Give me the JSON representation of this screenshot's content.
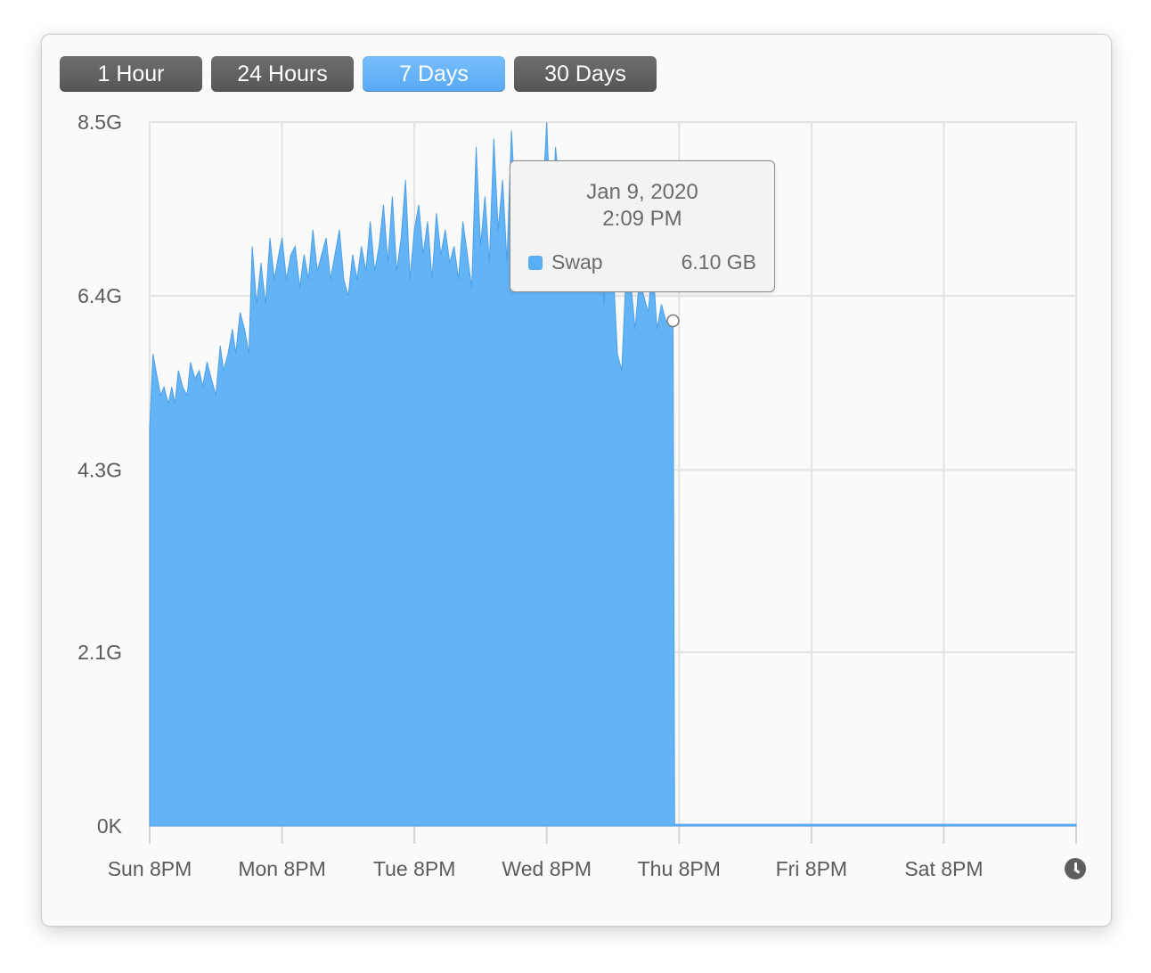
{
  "range_buttons": [
    {
      "label": "1 Hour",
      "selected": false
    },
    {
      "label": "24 Hours",
      "selected": false
    },
    {
      "label": "7 Days",
      "selected": true
    },
    {
      "label": "30 Days",
      "selected": false
    }
  ],
  "colors": {
    "accent": "#5aa9f5",
    "area_fill": "#63b4f7",
    "button_dark": "#616161"
  },
  "tooltip": {
    "date": "Jan 9, 2020",
    "time": "2:09 PM",
    "series": "Swap",
    "value": "6.10 GB"
  },
  "icons": {
    "time_icon": "clock-icon"
  },
  "chart_data": {
    "type": "area",
    "series": [
      {
        "name": "Swap",
        "unit": "GB"
      }
    ],
    "yticks": [
      "8.5G",
      "6.4G",
      "4.3G",
      "2.1G",
      "0K"
    ],
    "ytick_values": [
      8.5,
      6.4,
      4.3,
      2.1,
      0
    ],
    "ylim": [
      0,
      8.5
    ],
    "xticks": [
      "Sun 8PM",
      "Mon 8PM",
      "Tue 8PM",
      "Wed 8PM",
      "Thu 8PM",
      "Fri 8PM",
      "Sat 8PM"
    ],
    "xlim_hours": [
      0,
      168
    ],
    "grid": true,
    "points": [
      [
        0.0,
        4.8
      ],
      [
        0.6,
        5.7
      ],
      [
        1.4,
        5.4
      ],
      [
        2.0,
        5.2
      ],
      [
        2.6,
        5.3
      ],
      [
        3.4,
        5.1
      ],
      [
        4.0,
        5.3
      ],
      [
        4.6,
        5.1
      ],
      [
        5.2,
        5.5
      ],
      [
        6.0,
        5.3
      ],
      [
        6.8,
        5.2
      ],
      [
        7.4,
        5.6
      ],
      [
        8.2,
        5.4
      ],
      [
        9.0,
        5.5
      ],
      [
        9.6,
        5.3
      ],
      [
        10.4,
        5.6
      ],
      [
        11.2,
        5.4
      ],
      [
        12.0,
        5.2
      ],
      [
        12.8,
        5.8
      ],
      [
        13.4,
        5.5
      ],
      [
        14.2,
        5.7
      ],
      [
        15.0,
        6.0
      ],
      [
        15.6,
        5.7
      ],
      [
        16.4,
        6.2
      ],
      [
        17.2,
        6.0
      ],
      [
        18.0,
        5.7
      ],
      [
        18.6,
        7.0
      ],
      [
        19.4,
        6.3
      ],
      [
        20.2,
        6.8
      ],
      [
        21.0,
        6.3
      ],
      [
        21.8,
        7.1
      ],
      [
        22.6,
        6.6
      ],
      [
        23.4,
        6.9
      ],
      [
        24.0,
        7.1
      ],
      [
        24.8,
        6.6
      ],
      [
        25.6,
        6.9
      ],
      [
        26.4,
        7.0
      ],
      [
        27.2,
        6.5
      ],
      [
        28.0,
        6.9
      ],
      [
        28.8,
        6.6
      ],
      [
        29.6,
        7.2
      ],
      [
        30.4,
        6.7
      ],
      [
        31.2,
        6.9
      ],
      [
        32.0,
        7.1
      ],
      [
        32.8,
        6.6
      ],
      [
        33.6,
        6.9
      ],
      [
        34.4,
        7.2
      ],
      [
        35.2,
        6.6
      ],
      [
        36.0,
        6.4
      ],
      [
        36.8,
        6.9
      ],
      [
        37.6,
        6.6
      ],
      [
        38.4,
        7.0
      ],
      [
        39.2,
        6.7
      ],
      [
        40.0,
        7.3
      ],
      [
        40.8,
        6.7
      ],
      [
        41.6,
        7.0
      ],
      [
        42.4,
        7.5
      ],
      [
        43.2,
        6.8
      ],
      [
        44.0,
        7.6
      ],
      [
        44.8,
        6.7
      ],
      [
        45.6,
        7.1
      ],
      [
        46.4,
        7.8
      ],
      [
        47.2,
        6.6
      ],
      [
        48.0,
        7.2
      ],
      [
        48.8,
        7.5
      ],
      [
        49.6,
        6.9
      ],
      [
        50.4,
        7.3
      ],
      [
        51.2,
        6.6
      ],
      [
        52.0,
        7.4
      ],
      [
        52.8,
        6.9
      ],
      [
        53.6,
        7.2
      ],
      [
        54.4,
        6.8
      ],
      [
        55.2,
        7.0
      ],
      [
        56.0,
        6.6
      ],
      [
        56.8,
        7.3
      ],
      [
        57.6,
        6.9
      ],
      [
        58.4,
        6.5
      ],
      [
        59.2,
        8.2
      ],
      [
        60.0,
        7.0
      ],
      [
        60.8,
        7.6
      ],
      [
        61.6,
        6.8
      ],
      [
        62.4,
        8.3
      ],
      [
        63.2,
        7.2
      ],
      [
        64.0,
        7.8
      ],
      [
        64.8,
        6.8
      ],
      [
        65.6,
        8.4
      ],
      [
        66.4,
        7.4
      ],
      [
        67.2,
        7.1
      ],
      [
        68.0,
        7.6
      ],
      [
        68.8,
        6.9
      ],
      [
        69.6,
        6.6
      ],
      [
        70.4,
        6.8
      ],
      [
        71.2,
        7.5
      ],
      [
        72.0,
        8.5
      ],
      [
        72.8,
        7.1
      ],
      [
        73.6,
        8.2
      ],
      [
        74.4,
        7.6
      ],
      [
        75.2,
        8.0
      ],
      [
        76.0,
        7.3
      ],
      [
        76.8,
        8.0
      ],
      [
        77.6,
        7.1
      ],
      [
        78.4,
        7.5
      ],
      [
        79.2,
        6.9
      ],
      [
        80.0,
        7.4
      ],
      [
        80.8,
        6.5
      ],
      [
        81.6,
        7.6
      ],
      [
        82.4,
        6.3
      ],
      [
        83.2,
        7.2
      ],
      [
        84.0,
        6.8
      ],
      [
        84.8,
        5.7
      ],
      [
        85.6,
        5.5
      ],
      [
        86.4,
        6.7
      ],
      [
        87.2,
        6.6
      ],
      [
        88.0,
        6.0
      ],
      [
        88.8,
        6.6
      ],
      [
        89.6,
        6.4
      ],
      [
        90.4,
        6.2
      ],
      [
        91.2,
        6.8
      ],
      [
        92.0,
        6.0
      ],
      [
        92.8,
        6.3
      ],
      [
        93.6,
        6.1
      ],
      [
        94.4,
        6.1
      ],
      [
        94.9,
        6.1
      ],
      [
        95.2,
        0.02
      ],
      [
        120.0,
        0.02
      ],
      [
        145.0,
        0.02
      ],
      [
        168.0,
        0.02
      ]
    ]
  }
}
